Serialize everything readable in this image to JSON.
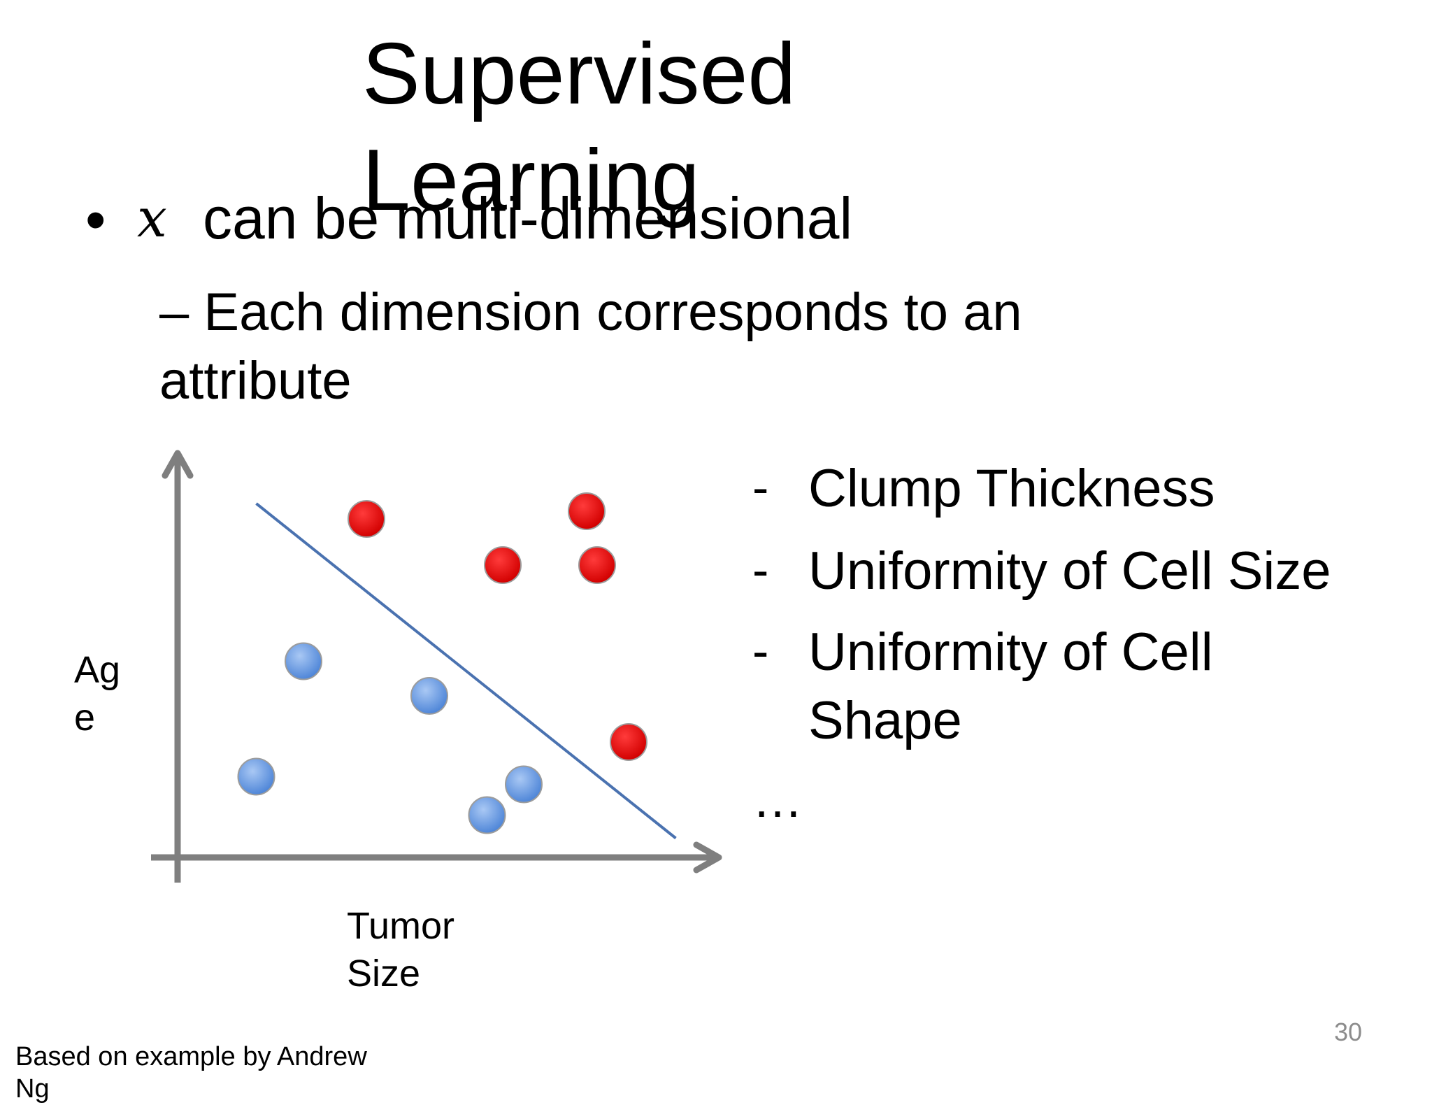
{
  "slide": {
    "title_line1": "Supervised",
    "title_line2": "Learning",
    "bullet_marker": "•",
    "bullet_variable": "x",
    "bullet_text": "can be multi-dimensional",
    "sub_bullet": "– Each dimension corresponds to an attribute",
    "attributes": [
      {
        "dash": "-",
        "label": "Clump Thickness"
      },
      {
        "dash": "-",
        "label": "Uniformity of Cell Size"
      },
      {
        "dash": "-",
        "label": "Uniformity of Cell Shape"
      }
    ],
    "ellipsis": "…",
    "footer": "Based on example by Andrew Ng",
    "page_number": "30"
  },
  "diagram": {
    "x_axis_label": "Tumor Size",
    "y_axis_label": "Age",
    "colors": {
      "axis": "#7f7f7f",
      "separator": "#4a72b0",
      "malignant": "#e8000b",
      "benign": "#6fa0e6"
    },
    "malignant_points": [
      {
        "tumor_size": 3.6,
        "age": 8.8
      },
      {
        "tumor_size": 7.8,
        "age": 9.0
      },
      {
        "tumor_size": 6.2,
        "age": 7.6
      },
      {
        "tumor_size": 8.0,
        "age": 7.6
      },
      {
        "tumor_size": 8.6,
        "age": 3.0
      }
    ],
    "benign_points": [
      {
        "tumor_size": 2.4,
        "age": 5.1
      },
      {
        "tumor_size": 4.8,
        "age": 4.2
      },
      {
        "tumor_size": 1.5,
        "age": 2.1
      },
      {
        "tumor_size": 6.6,
        "age": 1.9
      },
      {
        "tumor_size": 5.9,
        "age": 1.1
      }
    ],
    "separator": {
      "from": [
        1.5,
        9.2
      ],
      "to": [
        9.5,
        0.5
      ]
    }
  }
}
